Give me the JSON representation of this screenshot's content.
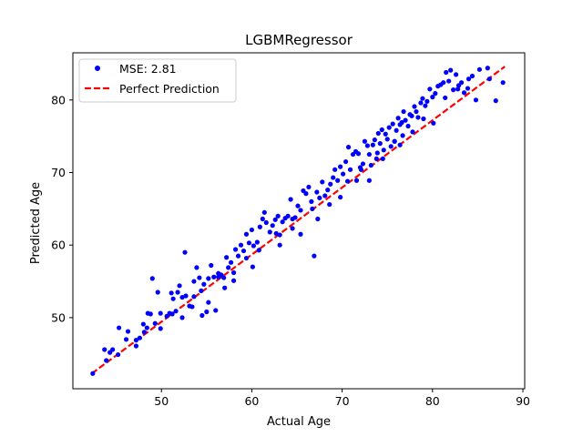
{
  "chart_data": {
    "type": "scatter",
    "title": "LGBMRegressor",
    "xlabel": "Actual Age",
    "ylabel": "Predicted Age",
    "xlim": [
      40.2,
      90.2
    ],
    "ylim": [
      40.2,
      86.5
    ],
    "xticks": [
      50,
      60,
      70,
      80,
      90
    ],
    "yticks": [
      50,
      60,
      70,
      80
    ],
    "grid": false,
    "legend_position": "upper-left",
    "series": [
      {
        "name": "MSE: 2.81",
        "kind": "scatter",
        "color": "#0000ff",
        "points": [
          [
            42.4,
            42.3
          ],
          [
            43.7,
            45.6
          ],
          [
            44.3,
            45.2
          ],
          [
            44.6,
            45.6
          ],
          [
            45.3,
            48.6
          ],
          [
            46.1,
            47.0
          ],
          [
            46.3,
            48.1
          ],
          [
            47.2,
            46.9
          ],
          [
            47.6,
            47.2
          ],
          [
            48.0,
            49.1
          ],
          [
            48.4,
            48.6
          ],
          [
            48.5,
            50.6
          ],
          [
            48.8,
            50.5
          ],
          [
            49.0,
            55.4
          ],
          [
            49.3,
            49.2
          ],
          [
            49.6,
            53.5
          ],
          [
            49.9,
            50.6
          ],
          [
            50.6,
            50.2
          ],
          [
            50.9,
            50.6
          ],
          [
            51.1,
            53.4
          ],
          [
            51.3,
            52.6
          ],
          [
            51.6,
            50.9
          ],
          [
            51.8,
            53.5
          ],
          [
            52.0,
            54.4
          ],
          [
            52.3,
            52.8
          ],
          [
            52.6,
            59.0
          ],
          [
            52.7,
            53.0
          ],
          [
            53.1,
            51.6
          ],
          [
            53.4,
            51.5
          ],
          [
            53.6,
            55.0
          ],
          [
            53.9,
            56.9
          ],
          [
            54.2,
            55.5
          ],
          [
            54.4,
            53.7
          ],
          [
            54.7,
            54.6
          ],
          [
            55.0,
            50.8
          ],
          [
            55.2,
            55.4
          ],
          [
            55.5,
            57.2
          ],
          [
            55.8,
            55.6
          ],
          [
            56.0,
            51.0
          ],
          [
            56.3,
            56.1
          ],
          [
            56.6,
            55.9
          ],
          [
            56.9,
            55.5
          ],
          [
            57.2,
            58.3
          ],
          [
            57.4,
            56.9
          ],
          [
            57.7,
            57.6
          ],
          [
            58.0,
            55.1
          ],
          [
            58.2,
            59.4
          ],
          [
            58.5,
            58.5
          ],
          [
            58.8,
            60.0
          ],
          [
            59.1,
            59.2
          ],
          [
            59.4,
            61.5
          ],
          [
            59.7,
            60.3
          ],
          [
            60.0,
            62.1
          ],
          [
            60.2,
            59.9
          ],
          [
            60.6,
            60.4
          ],
          [
            60.9,
            62.5
          ],
          [
            61.2,
            63.6
          ],
          [
            61.4,
            64.5
          ],
          [
            61.6,
            63.1
          ],
          [
            62.0,
            61.8
          ],
          [
            62.3,
            62.7
          ],
          [
            62.6,
            63.5
          ],
          [
            62.9,
            64.0
          ],
          [
            63.1,
            61.4
          ],
          [
            63.4,
            63.2
          ],
          [
            63.7,
            63.7
          ],
          [
            64.0,
            64.0
          ],
          [
            64.3,
            66.3
          ],
          [
            64.5,
            63.6
          ],
          [
            64.8,
            63.8
          ],
          [
            65.1,
            65.4
          ],
          [
            65.4,
            64.8
          ],
          [
            65.7,
            67.5
          ],
          [
            66.0,
            67.1
          ],
          [
            66.3,
            68.0
          ],
          [
            66.6,
            66.0
          ],
          [
            66.9,
            58.5
          ],
          [
            67.2,
            67.3
          ],
          [
            67.5,
            66.5
          ],
          [
            67.8,
            68.7
          ],
          [
            68.1,
            66.8
          ],
          [
            68.4,
            67.6
          ],
          [
            68.7,
            68.4
          ],
          [
            69.0,
            69.3
          ],
          [
            69.2,
            70.4
          ],
          [
            69.5,
            68.9
          ],
          [
            69.8,
            70.8
          ],
          [
            70.1,
            69.8
          ],
          [
            70.4,
            71.5
          ],
          [
            70.7,
            73.5
          ],
          [
            70.9,
            70.4
          ],
          [
            71.2,
            72.5
          ],
          [
            71.5,
            72.9
          ],
          [
            71.8,
            72.6
          ],
          [
            72.0,
            70.7
          ],
          [
            72.3,
            71.2
          ],
          [
            72.5,
            74.3
          ],
          [
            72.8,
            73.7
          ],
          [
            73.0,
            72.5
          ],
          [
            73.2,
            71.0
          ],
          [
            73.4,
            73.8
          ],
          [
            73.6,
            74.5
          ],
          [
            73.8,
            71.9
          ],
          [
            74.0,
            75.4
          ],
          [
            74.2,
            74.0
          ],
          [
            74.4,
            75.9
          ],
          [
            74.6,
            73.1
          ],
          [
            74.8,
            75.3
          ],
          [
            75.0,
            74.6
          ],
          [
            75.2,
            76.2
          ],
          [
            75.4,
            73.6
          ],
          [
            75.6,
            76.7
          ],
          [
            75.8,
            74.3
          ],
          [
            76.0,
            75.8
          ],
          [
            76.2,
            77.5
          ],
          [
            76.4,
            76.6
          ],
          [
            76.6,
            76.9
          ],
          [
            76.8,
            78.4
          ],
          [
            77.0,
            77.2
          ],
          [
            77.3,
            76.4
          ],
          [
            77.5,
            78.0
          ],
          [
            77.7,
            77.8
          ],
          [
            78.0,
            79.1
          ],
          [
            78.2,
            78.4
          ],
          [
            78.4,
            77.6
          ],
          [
            78.7,
            79.6
          ],
          [
            78.9,
            80.2
          ],
          [
            79.2,
            79.2
          ],
          [
            79.4,
            79.8
          ],
          [
            79.7,
            81.5
          ],
          [
            80.0,
            80.4
          ],
          [
            80.3,
            80.9
          ],
          [
            80.6,
            81.9
          ],
          [
            80.9,
            82.1
          ],
          [
            81.2,
            82.4
          ],
          [
            81.5,
            83.8
          ],
          [
            81.8,
            82.6
          ],
          [
            82.0,
            84.1
          ],
          [
            82.3,
            81.4
          ],
          [
            82.6,
            83.5
          ],
          [
            82.9,
            82.0
          ],
          [
            83.2,
            82.4
          ],
          [
            83.5,
            81.0
          ],
          [
            83.9,
            81.6
          ],
          [
            84.4,
            83.3
          ],
          [
            84.8,
            80.0
          ],
          [
            86.3,
            82.9
          ],
          [
            87.0,
            79.9
          ],
          [
            87.8,
            82.4
          ],
          [
            80.1,
            76.8
          ],
          [
            77.8,
            75.6
          ],
          [
            76.4,
            73.8
          ],
          [
            74.5,
            71.9
          ],
          [
            73.0,
            68.9
          ],
          [
            68.6,
            65.6
          ],
          [
            67.3,
            63.6
          ],
          [
            65.4,
            61.5
          ],
          [
            63.1,
            60.0
          ],
          [
            60.1,
            57.0
          ],
          [
            57.0,
            54.1
          ],
          [
            55.2,
            52.1
          ],
          [
            54.5,
            50.3
          ],
          [
            52.3,
            50.0
          ],
          [
            49.9,
            48.5
          ],
          [
            47.2,
            46.1
          ],
          [
            60.8,
            59.3
          ],
          [
            58.0,
            56.2
          ],
          [
            69.8,
            66.6
          ],
          [
            71.6,
            68.9
          ],
          [
            64.5,
            62.3
          ],
          [
            79.0,
            77.4
          ],
          [
            81.4,
            80.3
          ],
          [
            82.8,
            81.5
          ],
          [
            75.8,
            74.3
          ],
          [
            76.7,
            75.1
          ],
          [
            72.1,
            70.4
          ],
          [
            70.6,
            68.8
          ],
          [
            66.7,
            65.0
          ],
          [
            62.7,
            61.6
          ],
          [
            59.4,
            58.2
          ],
          [
            56.3,
            55.6
          ],
          [
            53.6,
            52.9
          ],
          [
            51.2,
            50.5
          ],
          [
            48.1,
            48.0
          ],
          [
            45.2,
            44.9
          ],
          [
            43.9,
            44.1
          ],
          [
            85.2,
            84.2
          ],
          [
            86.1,
            84.4
          ],
          [
            84.0,
            82.9
          ],
          [
            73.9,
            72.7
          ]
        ]
      },
      {
        "name": "Perfect Prediction",
        "kind": "line",
        "color": "#ff0000",
        "dash": true,
        "points": [
          [
            42.3,
            42.3
          ],
          [
            88.0,
            84.6
          ]
        ]
      }
    ]
  }
}
